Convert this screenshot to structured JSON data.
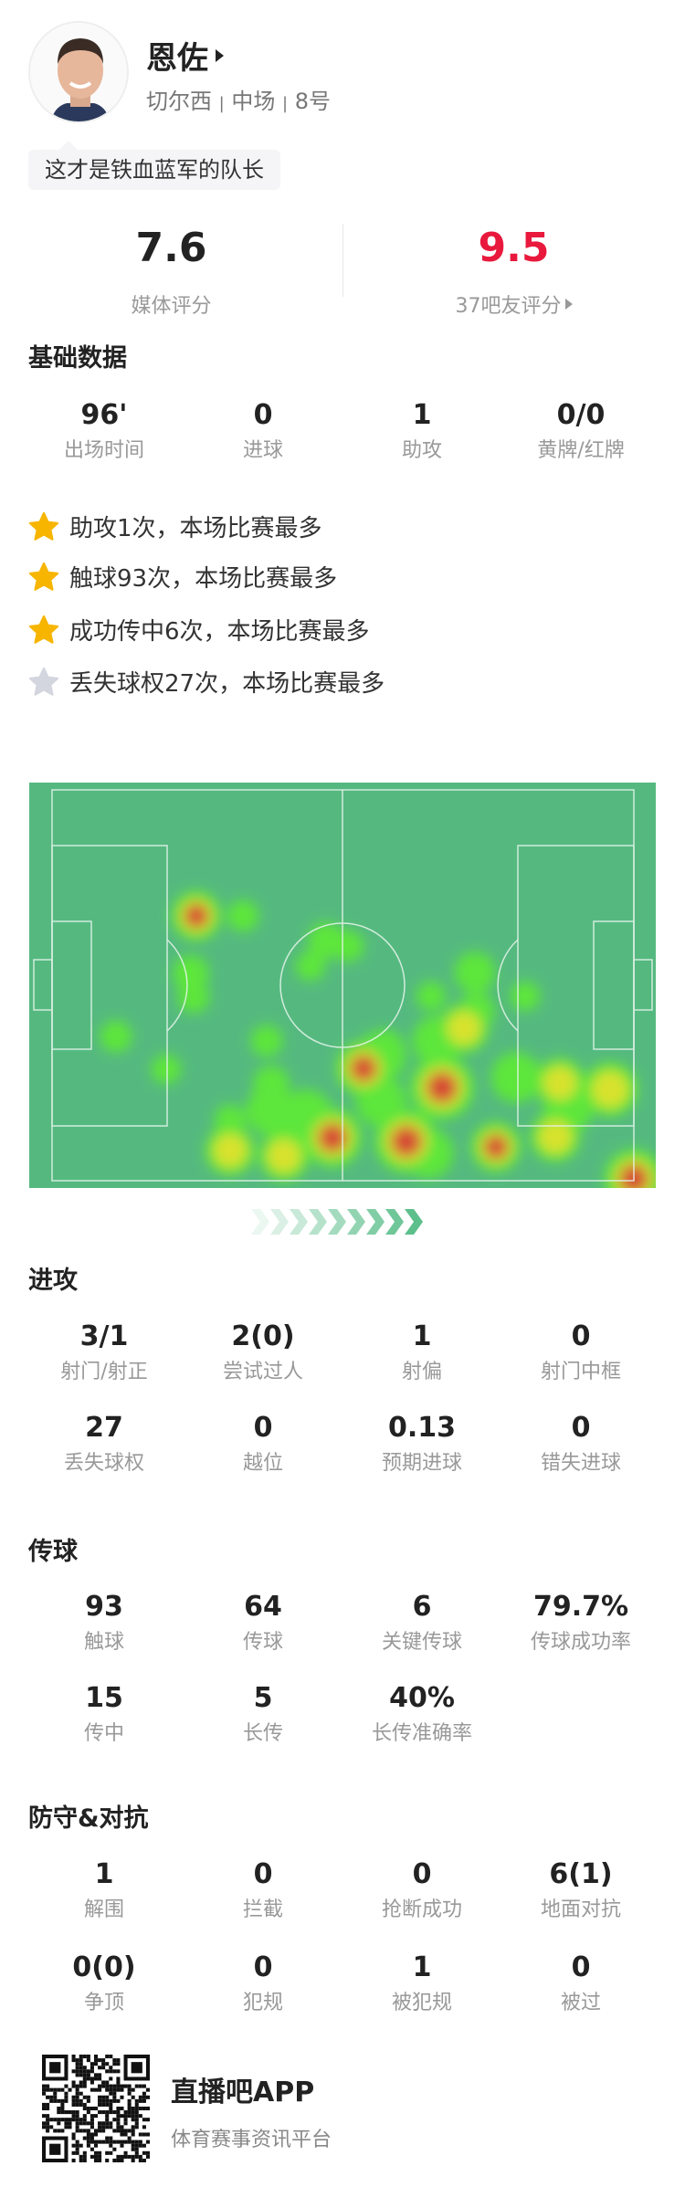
{
  "player": {
    "name": "恩佐",
    "team": "切尔西",
    "position": "中场",
    "number": "8号",
    "separator": "|",
    "quote": "这才是铁血蓝军的队长"
  },
  "ratings": {
    "media": {
      "value": "7.6",
      "label": "媒体评分"
    },
    "fans": {
      "value": "9.5",
      "label": "37吧友评分",
      "color": "#e8193c"
    }
  },
  "basic": {
    "title": "基础数据",
    "stats": [
      {
        "v": "96'",
        "l": "出场时间"
      },
      {
        "v": "0",
        "l": "进球"
      },
      {
        "v": "1",
        "l": "助攻"
      },
      {
        "v": "0/0",
        "l": "黄牌/红牌"
      }
    ]
  },
  "highlights": [
    {
      "text": "助攻1次，本场比赛最多",
      "star": "gold"
    },
    {
      "text": "触球93次，本场比赛最多",
      "star": "gold"
    },
    {
      "text": "成功传中6次，本场比赛最多",
      "star": "gold"
    },
    {
      "text": "丢失球权27次，本场比赛最多",
      "star": "gray"
    }
  ],
  "colors": {
    "gold_star": "#f7b500",
    "gray_star": "#d3d6de",
    "pitch": "#55b97f",
    "attack_arrows": "#5dbf8c"
  },
  "heatmap": {
    "icon": "heatmap-pitch",
    "direction": "attacking-right"
  },
  "attack": {
    "title": "进攻",
    "stats": [
      {
        "v": "3/1",
        "l": "射门/射正"
      },
      {
        "v": "2(0)",
        "l": "尝试过人"
      },
      {
        "v": "1",
        "l": "射偏"
      },
      {
        "v": "0",
        "l": "射门中框"
      },
      {
        "v": "27",
        "l": "丢失球权"
      },
      {
        "v": "0",
        "l": "越位"
      },
      {
        "v": "0.13",
        "l": "预期进球"
      },
      {
        "v": "0",
        "l": "错失进球"
      }
    ]
  },
  "passing": {
    "title": "传球",
    "stats": [
      {
        "v": "93",
        "l": "触球"
      },
      {
        "v": "64",
        "l": "传球"
      },
      {
        "v": "6",
        "l": "关键传球"
      },
      {
        "v": "79.7%",
        "l": "传球成功率"
      },
      {
        "v": "15",
        "l": "传中"
      },
      {
        "v": "5",
        "l": "长传"
      },
      {
        "v": "40%",
        "l": "长传准确率"
      }
    ]
  },
  "defense": {
    "title": "防守&对抗",
    "stats": [
      {
        "v": "1",
        "l": "解围"
      },
      {
        "v": "0",
        "l": "拦截"
      },
      {
        "v": "0",
        "l": "抢断成功"
      },
      {
        "v": "6(1)",
        "l": "地面对抗"
      },
      {
        "v": "0(0)",
        "l": "争顶"
      },
      {
        "v": "0",
        "l": "犯规"
      },
      {
        "v": "1",
        "l": "被犯规"
      },
      {
        "v": "0",
        "l": "被过"
      }
    ]
  },
  "footer": {
    "app_name": "直播吧APP",
    "tagline": "体育赛事资讯平台"
  }
}
